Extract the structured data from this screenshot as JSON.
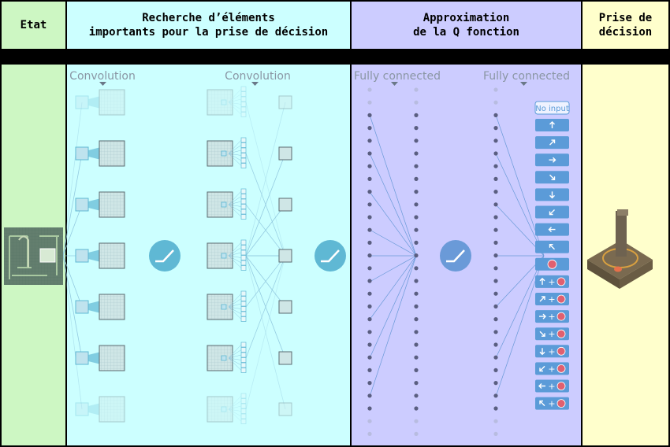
{
  "headers": {
    "etat": "Etat",
    "recherche": "Recherche d’éléments\nimportants pour la prise de décision",
    "approx": "Approximation\nde la Q fonction",
    "prise": "Prise de\ndécision"
  },
  "layers": {
    "conv1": "Convolution",
    "conv2": "Convolution",
    "fc1": "Fully connected",
    "fc2": "Fully connected"
  },
  "actions": {
    "no_input": "No input",
    "plus": "+",
    "list": [
      "up",
      "up-right",
      "right",
      "down-right",
      "down",
      "down-left",
      "left",
      "up-left",
      "fire",
      "up+fire",
      "up-right+fire",
      "right+fire",
      "down-right+fire",
      "down+fire",
      "down-left+fire",
      "left+fire",
      "up-left+fire"
    ]
  },
  "colors": {
    "etat_bg": "#cdf7c3",
    "recherche_bg": "#ccffff",
    "approx_bg": "#ccccff",
    "prise_bg": "#ffffcc",
    "relu_circle": "#5fb8d4",
    "relu_circle_fc": "#6a9ad8",
    "action_button": "#5b9bd8",
    "fire": "#e06070",
    "joystick": "#7a6a50"
  },
  "icons": {
    "activation": "relu-icon",
    "state": "game-screen-thumbnail",
    "decision": "joystick-icon",
    "arrows": "arrow-icons"
  }
}
